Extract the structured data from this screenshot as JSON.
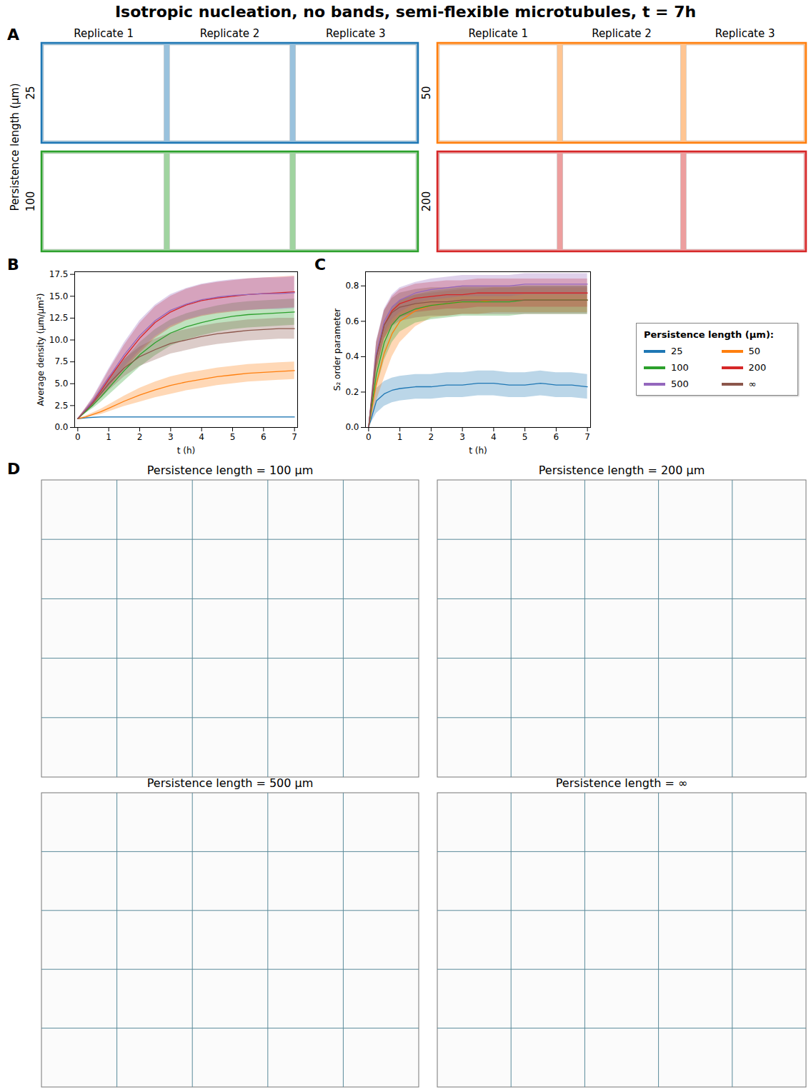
{
  "title": "Isotropic nucleation, no bands, semi-flexible microtubules, t = 7h",
  "panel_labels": [
    "A",
    "B",
    "C",
    "D"
  ],
  "panel_a": {
    "ylabel": "Persistence length (μm)",
    "replicates": [
      "Replicate 1",
      "Replicate 2",
      "Replicate 3"
    ],
    "groups": [
      "25",
      "50",
      "100",
      "200"
    ]
  },
  "panel_d": {
    "titles": [
      "Persistence length = 100 μm",
      "Persistence length = 200 μm",
      "Persistence length = 500 μm",
      "Persistence length = ∞"
    ]
  },
  "chart_data": [
    {
      "type": "line",
      "xlabel": "t (h)",
      "ylabel": "Average density (μm/μm²)",
      "x": [
        0,
        0.25,
        0.5,
        0.75,
        1,
        1.5,
        2,
        2.5,
        3,
        3.5,
        4,
        4.5,
        5,
        5.5,
        6,
        6.5,
        7
      ],
      "xlim": [
        -0.1,
        7.1
      ],
      "xticks": [
        0,
        1,
        2,
        3,
        4,
        5,
        6,
        7
      ],
      "ylim": [
        0,
        17.8
      ],
      "yticks": [
        {
          "value": 0,
          "label": "0.0"
        },
        2.5,
        {
          "value": 5,
          "label": "5.0"
        },
        7.5,
        {
          "value": 10,
          "label": "10.0"
        },
        12.5,
        {
          "value": 15,
          "label": "15.0"
        },
        17.5
      ],
      "grid": false,
      "series": [
        {
          "name": "25",
          "color": "#1f77b4",
          "values": [
            1.0,
            1.1,
            1.15,
            1.2,
            1.2,
            1.2,
            1.2,
            1.2,
            1.2,
            1.2,
            1.2,
            1.2,
            1.2,
            1.2,
            1.2,
            1.2,
            1.2
          ],
          "lower": [
            0.95,
            1.05,
            1.1,
            1.15,
            1.15,
            1.15,
            1.15,
            1.15,
            1.15,
            1.15,
            1.15,
            1.15,
            1.15,
            1.15,
            1.15,
            1.15,
            1.15
          ],
          "upper": [
            1.05,
            1.15,
            1.2,
            1.25,
            1.25,
            1.25,
            1.25,
            1.25,
            1.25,
            1.25,
            1.25,
            1.25,
            1.25,
            1.25,
            1.25,
            1.25,
            1.25
          ]
        },
        {
          "name": "50",
          "color": "#ff7f0e",
          "values": [
            1.0,
            1.2,
            1.5,
            1.8,
            2.2,
            3.0,
            3.7,
            4.3,
            4.8,
            5.2,
            5.5,
            5.8,
            6.0,
            6.2,
            6.3,
            6.4,
            6.5
          ],
          "lower": [
            1.0,
            1.1,
            1.3,
            1.5,
            1.8,
            2.4,
            2.9,
            3.4,
            3.8,
            4.2,
            4.5,
            4.8,
            5.0,
            5.2,
            5.3,
            5.4,
            5.5
          ],
          "upper": [
            1.0,
            1.3,
            1.7,
            2.1,
            2.6,
            3.6,
            4.5,
            5.2,
            5.8,
            6.2,
            6.5,
            6.8,
            7.0,
            7.2,
            7.3,
            7.4,
            7.5
          ]
        },
        {
          "name": "100",
          "color": "#2ca02c",
          "values": [
            1.0,
            1.8,
            2.6,
            3.5,
            4.5,
            6.5,
            8.3,
            9.7,
            10.8,
            11.5,
            12.0,
            12.4,
            12.7,
            12.9,
            13.0,
            13.1,
            13.2
          ],
          "lower": [
            1.0,
            1.6,
            2.2,
            2.9,
            3.7,
            5.3,
            6.9,
            8.2,
            9.3,
            10.0,
            10.5,
            10.9,
            11.2,
            11.4,
            11.5,
            11.6,
            11.7
          ],
          "upper": [
            1.0,
            2.0,
            3.0,
            4.1,
            5.3,
            7.7,
            9.7,
            11.2,
            12.3,
            13.0,
            13.5,
            13.9,
            14.2,
            14.4,
            14.5,
            14.6,
            14.7
          ]
        },
        {
          "name": "200",
          "color": "#d62728",
          "values": [
            1.0,
            2.0,
            3.0,
            4.2,
            5.5,
            8.0,
            10.2,
            12.0,
            13.2,
            14.0,
            14.5,
            14.8,
            15.0,
            15.2,
            15.3,
            15.4,
            15.5
          ],
          "lower": [
            1.0,
            1.8,
            2.6,
            3.5,
            4.5,
            6.6,
            8.5,
            10.2,
            11.4,
            12.2,
            12.7,
            13.0,
            13.2,
            13.4,
            13.5,
            13.6,
            13.7
          ],
          "upper": [
            1.0,
            2.2,
            3.4,
            4.9,
            6.5,
            9.4,
            11.9,
            13.8,
            15.0,
            15.8,
            16.3,
            16.6,
            16.8,
            17.0,
            17.1,
            17.2,
            17.3
          ]
        },
        {
          "name": "500",
          "color": "#9467bd",
          "values": [
            1.0,
            2.0,
            3.1,
            4.4,
            5.7,
            8.3,
            10.5,
            12.2,
            13.4,
            14.1,
            14.6,
            14.9,
            15.1,
            15.2,
            15.3,
            15.3,
            15.4
          ],
          "lower": [
            1.0,
            1.8,
            2.7,
            3.7,
            4.7,
            6.9,
            8.8,
            10.4,
            11.6,
            12.3,
            12.8,
            13.1,
            13.3,
            13.4,
            13.5,
            13.5,
            13.6
          ],
          "upper": [
            1.0,
            2.2,
            3.5,
            5.1,
            6.7,
            9.7,
            12.2,
            14.0,
            15.2,
            15.9,
            16.4,
            16.7,
            16.9,
            17.0,
            17.1,
            17.1,
            17.2
          ]
        },
        {
          "name": "∞",
          "color": "#8c564b",
          "values": [
            1.0,
            1.9,
            2.8,
            3.9,
            5.0,
            6.8,
            8.1,
            8.9,
            9.6,
            10.0,
            10.4,
            10.7,
            10.9,
            11.1,
            11.2,
            11.3,
            11.3
          ],
          "lower": [
            1.0,
            1.7,
            2.4,
            3.3,
            4.2,
            5.8,
            7.0,
            7.7,
            8.4,
            8.8,
            9.2,
            9.5,
            9.7,
            9.9,
            10.0,
            10.1,
            10.1
          ],
          "upper": [
            1.0,
            2.1,
            3.2,
            4.5,
            5.8,
            7.8,
            9.2,
            10.1,
            10.8,
            11.2,
            11.6,
            11.9,
            12.1,
            12.3,
            12.4,
            12.5,
            12.5
          ]
        }
      ]
    },
    {
      "type": "line",
      "xlabel": "t (h)",
      "ylabel": "S₂ order parameter",
      "x": [
        0,
        0.25,
        0.5,
        0.75,
        1,
        1.5,
        2,
        2.5,
        3,
        3.5,
        4,
        4.5,
        5,
        5.5,
        6,
        6.5,
        7
      ],
      "xlim": [
        -0.1,
        7.1
      ],
      "xticks": [
        0,
        1,
        2,
        3,
        4,
        5,
        6,
        7
      ],
      "ylim": [
        0,
        0.88
      ],
      "yticks": [
        {
          "value": 0,
          "label": "0.0"
        },
        0.2,
        0.4,
        0.6,
        0.8
      ],
      "grid": false,
      "legend": "right",
      "legend_title": "Persistence length (μm):",
      "series": [
        {
          "name": "25",
          "color": "#1f77b4",
          "values": [
            0.0,
            0.15,
            0.19,
            0.21,
            0.22,
            0.23,
            0.23,
            0.24,
            0.24,
            0.25,
            0.25,
            0.24,
            0.24,
            0.25,
            0.24,
            0.24,
            0.23
          ],
          "lower": [
            0.0,
            0.08,
            0.12,
            0.14,
            0.15,
            0.16,
            0.16,
            0.17,
            0.17,
            0.18,
            0.18,
            0.17,
            0.17,
            0.18,
            0.17,
            0.17,
            0.16
          ],
          "upper": [
            0.0,
            0.22,
            0.26,
            0.28,
            0.29,
            0.3,
            0.3,
            0.31,
            0.31,
            0.32,
            0.32,
            0.31,
            0.31,
            0.32,
            0.31,
            0.31,
            0.3
          ]
        },
        {
          "name": "50",
          "color": "#ff7f0e",
          "values": [
            0.0,
            0.25,
            0.42,
            0.53,
            0.6,
            0.66,
            0.69,
            0.7,
            0.71,
            0.71,
            0.72,
            0.72,
            0.72,
            0.72,
            0.72,
            0.72,
            0.72
          ],
          "lower": [
            0.0,
            0.15,
            0.28,
            0.4,
            0.48,
            0.57,
            0.62,
            0.63,
            0.64,
            0.64,
            0.65,
            0.65,
            0.65,
            0.65,
            0.65,
            0.65,
            0.65
          ],
          "upper": [
            0.0,
            0.35,
            0.56,
            0.66,
            0.72,
            0.75,
            0.76,
            0.77,
            0.78,
            0.78,
            0.79,
            0.79,
            0.79,
            0.79,
            0.79,
            0.79,
            0.79
          ]
        },
        {
          "name": "100",
          "color": "#2ca02c",
          "values": [
            0.0,
            0.3,
            0.48,
            0.58,
            0.63,
            0.67,
            0.69,
            0.7,
            0.71,
            0.71,
            0.71,
            0.71,
            0.72,
            0.72,
            0.72,
            0.72,
            0.72
          ],
          "lower": [
            0.0,
            0.22,
            0.38,
            0.48,
            0.54,
            0.59,
            0.61,
            0.62,
            0.63,
            0.63,
            0.63,
            0.63,
            0.64,
            0.64,
            0.64,
            0.64,
            0.64
          ],
          "upper": [
            0.0,
            0.38,
            0.58,
            0.68,
            0.72,
            0.75,
            0.77,
            0.78,
            0.79,
            0.79,
            0.79,
            0.79,
            0.8,
            0.8,
            0.8,
            0.8,
            0.8
          ]
        },
        {
          "name": "200",
          "color": "#d62728",
          "values": [
            0.0,
            0.4,
            0.58,
            0.66,
            0.7,
            0.73,
            0.74,
            0.75,
            0.75,
            0.76,
            0.76,
            0.76,
            0.76,
            0.76,
            0.76,
            0.76,
            0.76
          ],
          "lower": [
            0.0,
            0.32,
            0.5,
            0.58,
            0.62,
            0.65,
            0.66,
            0.67,
            0.67,
            0.68,
            0.68,
            0.68,
            0.68,
            0.68,
            0.68,
            0.68,
            0.68
          ],
          "upper": [
            0.0,
            0.48,
            0.66,
            0.74,
            0.78,
            0.81,
            0.82,
            0.83,
            0.83,
            0.84,
            0.84,
            0.84,
            0.84,
            0.84,
            0.84,
            0.84,
            0.84
          ]
        },
        {
          "name": "500",
          "color": "#9467bd",
          "values": [
            0.0,
            0.42,
            0.6,
            0.68,
            0.72,
            0.76,
            0.78,
            0.79,
            0.8,
            0.8,
            0.8,
            0.8,
            0.81,
            0.81,
            0.81,
            0.81,
            0.81
          ],
          "lower": [
            0.0,
            0.35,
            0.53,
            0.61,
            0.65,
            0.7,
            0.72,
            0.73,
            0.74,
            0.74,
            0.74,
            0.74,
            0.75,
            0.75,
            0.75,
            0.75,
            0.75
          ],
          "upper": [
            0.0,
            0.49,
            0.67,
            0.75,
            0.79,
            0.82,
            0.84,
            0.85,
            0.86,
            0.86,
            0.86,
            0.86,
            0.87,
            0.87,
            0.87,
            0.87,
            0.87
          ]
        },
        {
          "name": "∞",
          "color": "#8c564b",
          "values": [
            0.0,
            0.4,
            0.58,
            0.65,
            0.68,
            0.7,
            0.71,
            0.71,
            0.72,
            0.72,
            0.72,
            0.72,
            0.72,
            0.72,
            0.72,
            0.72,
            0.72
          ],
          "lower": [
            0.0,
            0.32,
            0.5,
            0.57,
            0.6,
            0.62,
            0.63,
            0.63,
            0.64,
            0.64,
            0.64,
            0.64,
            0.64,
            0.64,
            0.64,
            0.64,
            0.64
          ],
          "upper": [
            0.0,
            0.48,
            0.66,
            0.73,
            0.76,
            0.78,
            0.79,
            0.79,
            0.8,
            0.8,
            0.8,
            0.8,
            0.8,
            0.8,
            0.8,
            0.8,
            0.8
          ]
        }
      ]
    }
  ]
}
